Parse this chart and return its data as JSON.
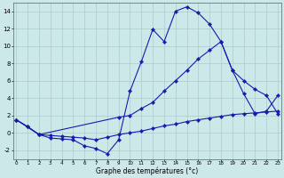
{
  "xlabel": "Graphe des températures (°c)",
  "background_color": "#cce8e8",
  "grid_color": "#aacccc",
  "line_color": "#1a1ab0",
  "xlim_min": 0,
  "xlim_max": 23,
  "ylim_min": -3,
  "ylim_max": 15,
  "xticks": [
    0,
    1,
    2,
    3,
    4,
    5,
    6,
    7,
    8,
    9,
    10,
    11,
    12,
    13,
    14,
    15,
    16,
    17,
    18,
    19,
    20,
    21,
    22,
    23
  ],
  "yticks": [
    -2,
    0,
    2,
    4,
    6,
    8,
    10,
    12,
    14
  ],
  "line1_x": [
    0,
    1,
    2,
    3,
    4,
    5,
    6,
    7,
    8,
    9,
    10,
    11,
    12,
    13,
    14,
    15,
    16,
    17,
    18,
    19,
    20,
    21,
    22,
    23
  ],
  "line1_y": [
    1.5,
    0.7,
    -0.2,
    -0.6,
    -0.7,
    -0.8,
    -1.5,
    -1.8,
    -2.4,
    -0.8,
    4.8,
    8.2,
    11.9,
    10.5,
    14.0,
    14.5,
    13.8,
    12.5,
    10.5,
    7.2,
    4.5,
    2.2,
    2.5,
    4.3
  ],
  "line2_x": [
    0,
    2,
    9,
    10,
    11,
    12,
    13,
    14,
    15,
    16,
    17,
    18,
    19,
    20,
    21,
    22,
    23
  ],
  "line2_y": [
    1.5,
    -0.2,
    1.8,
    2.0,
    2.8,
    3.5,
    4.8,
    6.0,
    7.2,
    8.5,
    9.5,
    10.5,
    7.2,
    6.0,
    5.0,
    4.3,
    2.2
  ],
  "line3_x": [
    0,
    1,
    2,
    3,
    4,
    5,
    6,
    7,
    8,
    9,
    10,
    11,
    12,
    13,
    14,
    15,
    16,
    17,
    18,
    19,
    20,
    21,
    22,
    23
  ],
  "line3_y": [
    1.5,
    0.7,
    -0.2,
    -0.3,
    -0.4,
    -0.5,
    -0.6,
    -0.8,
    -0.5,
    -0.2,
    0.0,
    0.2,
    0.5,
    0.8,
    1.0,
    1.3,
    1.5,
    1.7,
    1.9,
    2.1,
    2.2,
    2.3,
    2.4,
    2.5
  ]
}
